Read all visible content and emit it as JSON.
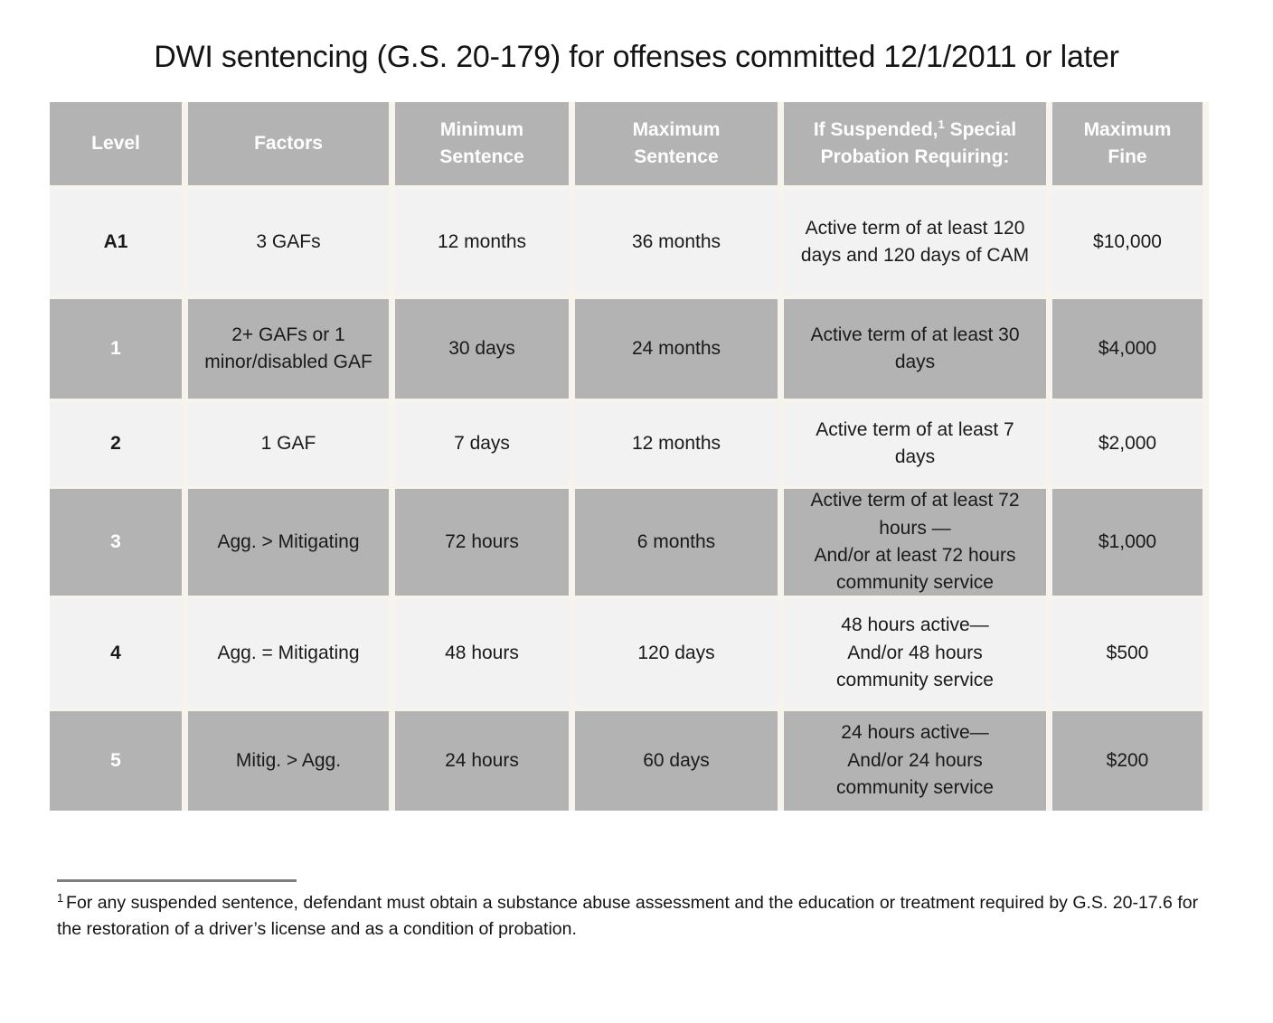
{
  "title": "DWI sentencing (G.S. 20-179) for offenses committed 12/1/2011 or later",
  "table": {
    "headers": {
      "level": "Level",
      "factors": "Factors",
      "min": "Minimum\nSentence",
      "max": "Maximum\nSentence",
      "suspended_pre": "If Suspended,",
      "suspended_sup": "1",
      "suspended_post": " Special Probation Requiring:",
      "fine": "Maximum\nFine"
    },
    "rows": [
      {
        "level": "A1",
        "factors": "3 GAFs",
        "min": "12 months",
        "max": "36 months",
        "suspended": "Active term of at least 120\ndays and 120 days of CAM",
        "fine": "$10,000"
      },
      {
        "level": "1",
        "factors": "2+ GAFs or 1\nminor/disabled GAF",
        "min": "30 days",
        "max": "24 months",
        "suspended": "Active term of at least 30\ndays",
        "fine": "$4,000"
      },
      {
        "level": "2",
        "factors": "1 GAF",
        "min": "7 days",
        "max": "12 months",
        "suspended": "Active term of at least 7\ndays",
        "fine": "$2,000"
      },
      {
        "level": "3",
        "factors": "Agg. > Mitigating",
        "min": "72 hours",
        "max": "6 months",
        "suspended": "Active term of at least 72\nhours —\nAnd/or at least 72 hours\ncommunity service",
        "fine": "$1,000"
      },
      {
        "level": "4",
        "factors": "Agg. = Mitigating",
        "min": "48 hours",
        "max": "120 days",
        "suspended": "48 hours active—\nAnd/or 48 hours\ncommunity service",
        "fine": "$500"
      },
      {
        "level": "5",
        "factors": "Mitig. > Agg.",
        "min": "24 hours",
        "max": "60 days",
        "suspended": "24 hours active—\nAnd/or 24 hours\ncommunity service",
        "fine": "$200"
      }
    ]
  },
  "footnote": {
    "sup": "1",
    "text": "For any suspended sentence, defendant must obtain a substance abuse assessment and the education or treatment required by G.S. 20-17.6 for the restoration of a driver’s license and as a condition of probation."
  },
  "colors": {
    "row_gray": "#b3b3b3",
    "row_light": "#f2f2f2",
    "divider": "#f7f4ed",
    "footnote_rule": "#7f7f7f",
    "header_text": "#ffffff",
    "body_text": "#1a1a1a"
  }
}
